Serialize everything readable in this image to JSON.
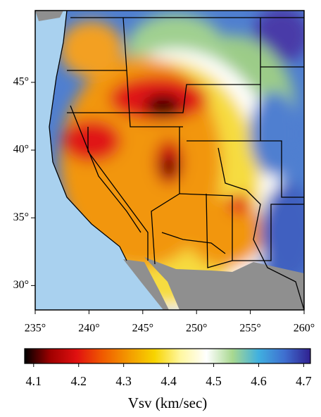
{
  "chart_data": {
    "type": "map",
    "xlim": [
      235,
      260
    ],
    "xticks": [
      {
        "value": 235,
        "label": "235°"
      },
      {
        "value": 240,
        "label": "240°"
      },
      {
        "value": 245,
        "label": "245°"
      },
      {
        "value": 250,
        "label": "250°"
      },
      {
        "value": 255,
        "label": "255°"
      },
      {
        "value": 260,
        "label": "260°"
      }
    ],
    "ylim": [
      28.2,
      50.3
    ],
    "yticks": [
      {
        "value": 30,
        "label": "30°"
      },
      {
        "value": 35,
        "label": "35°"
      },
      {
        "value": 40,
        "label": "40°"
      },
      {
        "value": 45,
        "label": "45°"
      }
    ],
    "colorbar": {
      "label": "Vsv (km/sec)",
      "lim": [
        4.08,
        4.715
      ],
      "ticks": [
        4.1,
        4.2,
        4.3,
        4.4,
        4.5,
        4.6,
        4.7
      ],
      "colors": [
        "#000000",
        "#a00000",
        "#e01010",
        "#f05a00",
        "#f39a00",
        "#f7d400",
        "#fff7a0",
        "#ffffff",
        "#a8d890",
        "#40b0e0",
        "#3f6fd0",
        "#302090"
      ]
    }
  }
}
